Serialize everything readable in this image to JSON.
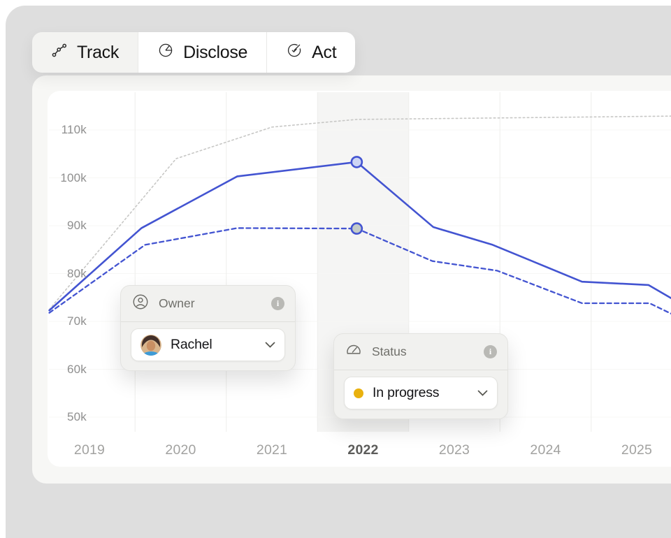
{
  "tabs": [
    {
      "label": "Track",
      "icon": "trend-icon",
      "selected": true
    },
    {
      "label": "Disclose",
      "icon": "pie-chart-icon",
      "selected": false
    },
    {
      "label": "Act",
      "icon": "target-check-icon",
      "selected": false
    }
  ],
  "filters": {
    "owner": {
      "label": "Owner",
      "icon": "person-icon",
      "value": "Rachel",
      "has_info": true
    },
    "status": {
      "label": "Status",
      "icon": "gauge-icon",
      "value": "In progress",
      "dot_color": "#e9b10e",
      "has_info": true
    }
  },
  "chart_data": {
    "type": "line",
    "y_unit": "k",
    "x_axis": {
      "ticks": [
        {
          "label": "2019",
          "year": 2019,
          "emphasized": false
        },
        {
          "label": "2020",
          "year": 2020,
          "emphasized": false
        },
        {
          "label": "2021",
          "year": 2021,
          "emphasized": false
        },
        {
          "label": "2022",
          "year": 2022,
          "emphasized": true
        },
        {
          "label": "2023",
          "year": 2023,
          "emphasized": false
        },
        {
          "label": "2024",
          "year": 2024,
          "emphasized": false
        },
        {
          "label": "2025",
          "year": 2025,
          "emphasized": false
        }
      ]
    },
    "y_axis": {
      "ticks": [
        {
          "label": "110k",
          "value": 110
        },
        {
          "label": "100k",
          "value": 100
        },
        {
          "label": "90k",
          "value": 90
        },
        {
          "label": "80k",
          "value": 80
        },
        {
          "label": "70k",
          "value": 70
        },
        {
          "label": "60k",
          "value": 60
        },
        {
          "label": "50k",
          "value": 50
        }
      ]
    },
    "gridlines_x_years": [
      2019.5,
      2020.5,
      2021.5,
      2022.5,
      2023.5,
      2024.5
    ],
    "highlight_band": {
      "from_year": 2021.5,
      "to_year": 2022.5,
      "color": "#f5f5f4"
    },
    "series": [
      {
        "id": "dotted-gray-trajectory",
        "color": "#c7c7c5",
        "stroke_width": 1.6,
        "dash": "2.5 3.5",
        "points": [
          [
            2018.56,
            72.5
          ],
          [
            2019.95,
            104.0
          ],
          [
            2021.0,
            110.6
          ],
          [
            2021.93,
            112.2
          ],
          [
            2025.4,
            112.9
          ]
        ]
      },
      {
        "id": "solid-blue",
        "color": "#4354d1",
        "stroke_width": 2.6,
        "dash": null,
        "points": [
          [
            2018.56,
            72.3
          ],
          [
            2019.57,
            89.5
          ],
          [
            2020.62,
            100.3
          ],
          [
            2021.93,
            103.3
          ],
          [
            2022.77,
            89.7
          ],
          [
            2023.42,
            86.0
          ],
          [
            2024.4,
            78.3
          ],
          [
            2025.13,
            77.6
          ],
          [
            2025.4,
            74.6
          ]
        ]
      },
      {
        "id": "dashed-blue",
        "color": "#4354d1",
        "stroke_width": 2.3,
        "dash": "6 4.5",
        "points": [
          [
            2018.56,
            71.8
          ],
          [
            2019.61,
            86.0
          ],
          [
            2020.62,
            89.5
          ],
          [
            2021.93,
            89.4
          ],
          [
            2022.76,
            82.6
          ],
          [
            2023.47,
            80.6
          ],
          [
            2024.4,
            73.8
          ],
          [
            2025.14,
            73.8
          ],
          [
            2025.4,
            71.4
          ]
        ]
      }
    ],
    "markers": [
      {
        "year": 2021.93,
        "value": 103.3,
        "fill": "#cdd5f4",
        "stroke": "#4354d1"
      },
      {
        "year": 2021.93,
        "value": 89.4,
        "fill": "#c3cbc8",
        "stroke": "#4354d1"
      }
    ]
  }
}
